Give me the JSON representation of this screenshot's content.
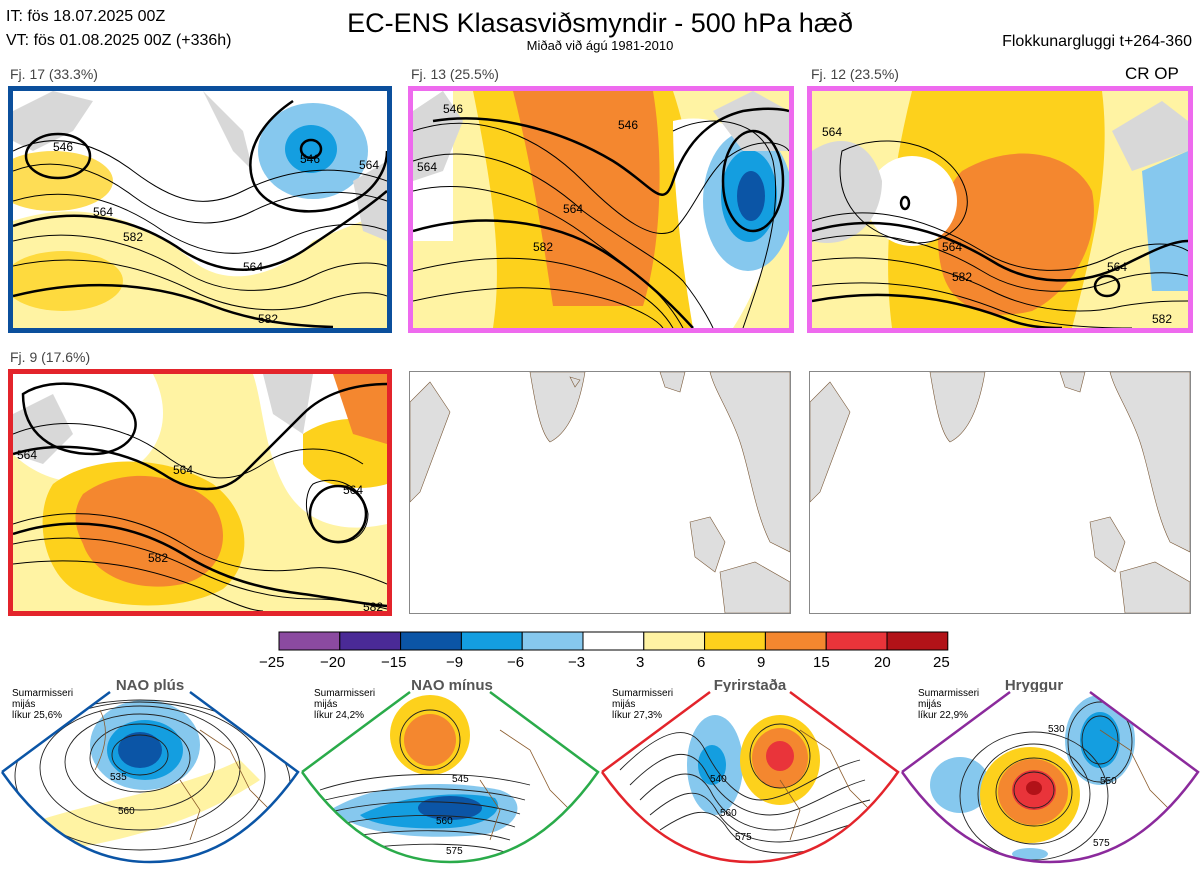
{
  "header": {
    "it": "IT: fös 18.07.2025 00Z",
    "vt": "VT: fös 01.08.2025 00Z  (+336h)",
    "title": "EC-ENS Klasasviðsmyndir - 500 hPa hæð",
    "subtitle": "Miðað við ágú 1981-2010",
    "window": "Flokkunargluggi t+264-360",
    "op_label": "CR OP"
  },
  "panels": [
    {
      "label": "Fj. 17 (33.3%)",
      "frame_color": "#0b4f9c",
      "contours": [
        "546",
        "564",
        "582",
        "564",
        "582",
        "546",
        "564"
      ]
    },
    {
      "label": "Fj. 13 (25.5%)",
      "frame_color": "#ee6aee",
      "contours": [
        "546",
        "564",
        "582",
        "546",
        "564"
      ]
    },
    {
      "label": "Fj. 12 (23.5%)",
      "frame_color": "#ee6aee",
      "contours": [
        "564",
        "564",
        "582",
        "564",
        "582"
      ]
    },
    {
      "label": "Fj. 9 (17.6%)",
      "frame_color": "#e3242b",
      "contours": [
        "564",
        "564",
        "564",
        "582",
        "582"
      ]
    }
  ],
  "colorbar": {
    "ticks": [
      "−25",
      "−20",
      "−15",
      "−9",
      "−6",
      "−3",
      "3",
      "6",
      "9",
      "15",
      "20",
      "25"
    ],
    "colors": [
      "#8b4aa0",
      "#4a2a96",
      "#0b55a6",
      "#149ee0",
      "#86c8ee",
      "#ffffff",
      "#fff3a3",
      "#fdd11c",
      "#f4872f",
      "#e9343a",
      "#b21218"
    ]
  },
  "regimes": [
    {
      "name": "NAO plús",
      "season": "Sumarmisseri",
      "average": "mijás",
      "probability": "líkur 25,6%",
      "dot_color": "#0b55a6",
      "frame_color": "#0b55a6",
      "contours": [
        "535",
        "560"
      ]
    },
    {
      "name": "NAO mínus",
      "season": "Sumarmisseri",
      "average": "mijás",
      "probability": "líkur 24,2%",
      "dot_color": "#2aab4a",
      "frame_color": "#2aab4a",
      "contours": [
        "545",
        "560",
        "575"
      ]
    },
    {
      "name": "Fyrirstaða",
      "season": "Sumarmisseri",
      "average": "mijás",
      "probability": "líkur 27,3%",
      "dot_color": "#e3242b",
      "frame_color": "#e3242b",
      "contours": [
        "540",
        "560",
        "575"
      ]
    },
    {
      "name": "Hryggur",
      "season": "Sumarmisseri",
      "average": "mijás",
      "probability": "líkur 22,9%",
      "dot_color": "#ee6aee",
      "frame_color": "#8b2a9c",
      "contours": [
        "530",
        "550",
        "575"
      ]
    }
  ]
}
